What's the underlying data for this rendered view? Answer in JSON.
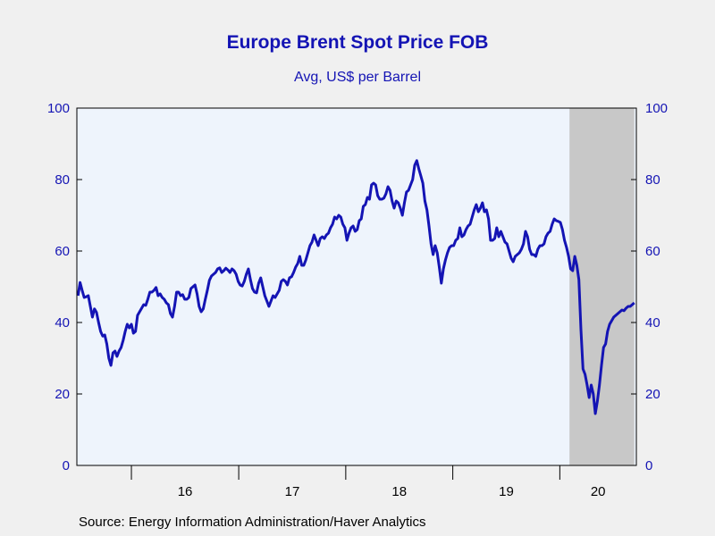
{
  "chart_data": {
    "type": "line",
    "title": "Europe Brent Spot Price FOB",
    "subtitle": "Avg, US$ per Barrel",
    "source": "Source:  Energy Information Administration/Haver Analytics",
    "ylim": [
      0,
      100
    ],
    "y_ticks": [
      0,
      20,
      40,
      60,
      80,
      100
    ],
    "y_tick_labels": [
      "0",
      "20",
      "40",
      "60",
      "80",
      "100"
    ],
    "x_year_labels": [
      {
        "label": "16",
        "year": 2016
      },
      {
        "label": "17",
        "year": 2017
      },
      {
        "label": "18",
        "year": 2018
      },
      {
        "label": "19",
        "year": 2019
      },
      {
        "label": "20",
        "year": 2020
      }
    ],
    "x_range": [
      "2015-06-29",
      "2020-09-18"
    ],
    "recession_shading": {
      "start": "2020-02-03",
      "end": "2020-09-11",
      "color": "#c8c8c8"
    },
    "plot_background": "#eef4fc",
    "line_color": "#1414b4",
    "series": [
      {
        "frequency": "weekly",
        "start": "2015-07-03",
        "values": [
          47.5,
          51.2,
          49.0,
          47.0,
          47.2,
          47.5,
          44.5,
          41.5,
          43.8,
          42.8,
          40.0,
          37.5,
          36.2,
          36.5,
          34.0,
          30.0,
          28.0,
          31.5,
          32.0,
          30.5,
          32.0,
          33.0,
          35.0,
          37.5,
          39.5,
          38.5,
          39.5,
          37.0,
          37.5,
          42.0,
          43.0,
          44.0,
          45.0,
          44.8,
          46.5,
          48.5,
          48.5,
          49.0,
          49.8,
          47.5,
          48.0,
          47.0,
          46.5,
          45.5,
          45.0,
          42.5,
          41.5,
          44.5,
          48.5,
          48.5,
          47.5,
          47.8,
          46.5,
          46.5,
          47.0,
          49.5,
          50.0,
          50.5,
          48.0,
          44.5,
          43.0,
          43.8,
          46.5,
          49.0,
          51.8,
          53.0,
          53.5,
          54.0,
          55.0,
          55.3,
          54.0,
          54.5,
          55.2,
          54.7,
          54.0,
          55.0,
          54.5,
          53.5,
          51.5,
          50.5,
          50.2,
          51.5,
          53.5,
          55.0,
          52.0,
          49.5,
          48.5,
          48.3,
          51.0,
          52.5,
          50.0,
          47.5,
          46.0,
          44.5,
          46.0,
          47.5,
          47.0,
          48.0,
          49.0,
          51.5,
          52.0,
          51.5,
          50.5,
          52.5,
          52.8,
          54.0,
          55.5,
          56.5,
          58.5,
          56.0,
          56.0,
          57.5,
          59.5,
          61.5,
          62.5,
          64.5,
          63.0,
          61.5,
          63.5,
          64.0,
          63.5,
          64.5,
          65.0,
          66.5,
          67.5,
          69.5,
          69.0,
          70.0,
          69.5,
          67.5,
          66.5,
          63.0,
          65.0,
          66.5,
          67.0,
          65.5,
          66.0,
          68.5,
          69.0,
          72.5,
          73.0,
          75.0,
          74.5,
          78.5,
          79.0,
          78.5,
          75.5,
          74.5,
          74.5,
          74.8,
          76.0,
          78.0,
          77.0,
          74.0,
          72.0,
          74.0,
          73.5,
          72.0,
          70.0,
          73.5,
          76.5,
          77.0,
          78.5,
          80.0,
          84.0,
          85.3,
          83.0,
          81.0,
          79.0,
          74.0,
          71.5,
          67.0,
          62.0,
          59.0,
          61.5,
          59.5,
          55.5,
          51.0,
          55.0,
          57.5,
          59.5,
          61.0,
          61.5,
          61.5,
          63.0,
          63.5,
          66.5,
          64.0,
          64.5,
          66.0,
          67.0,
          67.5,
          69.5,
          71.5,
          73.0,
          71.0,
          72.0,
          73.5,
          71.0,
          71.5,
          69.0,
          63.0,
          63.0,
          63.5,
          66.5,
          64.0,
          65.5,
          64.0,
          62.5,
          62.0,
          60.0,
          58.0,
          57.0,
          58.5,
          59.0,
          59.5,
          60.5,
          62.0,
          65.5,
          64.0,
          60.5,
          59.0,
          59.0,
          58.5,
          60.5,
          61.5,
          61.5,
          62.0,
          64.0,
          65.0,
          65.5,
          67.5,
          69.0,
          68.5,
          68.3,
          68.0,
          66.0,
          63.0,
          61.0,
          58.5,
          55.0,
          54.5,
          58.5,
          56.0,
          52.0,
          38.0,
          27.0,
          25.5,
          22.5,
          19.0,
          22.5,
          20.0,
          14.5,
          18.0,
          22.5,
          28.0,
          33.0,
          34.0,
          37.5,
          39.5,
          40.5,
          41.5,
          42.0,
          42.5,
          43.0,
          43.5,
          43.3,
          44.0,
          44.5,
          44.5,
          45.0,
          45.5
        ]
      }
    ]
  }
}
